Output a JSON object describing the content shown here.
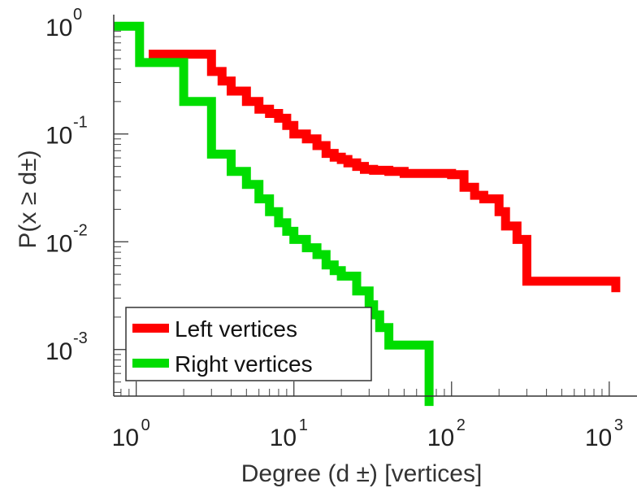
{
  "chart_data": {
    "type": "line",
    "style": "step",
    "x_scale": "log",
    "y_scale": "log",
    "xlabel": "Degree (d  ±) [vertices]",
    "ylabel": "P(x ≥ d±)",
    "xlim": [
      0.72,
      1500
    ],
    "ylim": [
      0.00037,
      1.28
    ],
    "x_ticks": [
      {
        "value": 1,
        "base": "10",
        "exp": "0"
      },
      {
        "value": 10,
        "base": "10",
        "exp": "1"
      },
      {
        "value": 100,
        "base": "10",
        "exp": "2"
      },
      {
        "value": 1000,
        "base": "10",
        "exp": "3"
      }
    ],
    "y_ticks": [
      {
        "value": 1,
        "base": "10",
        "exp": "0"
      },
      {
        "value": 0.1,
        "base": "10",
        "exp": "-1"
      },
      {
        "value": 0.01,
        "base": "10",
        "exp": "-2"
      },
      {
        "value": 0.001,
        "base": "10",
        "exp": "-3"
      }
    ],
    "legend_position": "bottom-left",
    "series": [
      {
        "name": "Left vertices",
        "color": "#ff0000",
        "x": [
          1.2,
          2,
          3,
          3.5,
          4,
          5,
          6,
          7,
          8,
          9,
          10,
          12,
          14,
          16,
          18,
          20,
          22,
          25,
          28,
          32,
          40,
          50,
          70,
          100,
          120,
          140,
          160,
          200,
          220,
          260,
          300,
          600,
          1100
        ],
        "y": [
          0.55,
          0.55,
          0.38,
          0.31,
          0.25,
          0.2,
          0.17,
          0.155,
          0.14,
          0.12,
          0.1,
          0.09,
          0.078,
          0.066,
          0.061,
          0.058,
          0.054,
          0.05,
          0.047,
          0.046,
          0.045,
          0.043,
          0.043,
          0.042,
          0.032,
          0.027,
          0.025,
          0.019,
          0.014,
          0.0105,
          0.0043,
          0.0043,
          0.0034
        ]
      },
      {
        "name": "Right vertices",
        "color": "#00dd00",
        "x": [
          0.72,
          1,
          1.05,
          1.6,
          2,
          2.5,
          3,
          4,
          5,
          6,
          7,
          8,
          9,
          10,
          12,
          14,
          16,
          18,
          20,
          25,
          30,
          32,
          35,
          40,
          50,
          65,
          72
        ],
        "y": [
          1,
          1,
          0.46,
          0.46,
          0.2,
          0.2,
          0.065,
          0.045,
          0.034,
          0.025,
          0.019,
          0.015,
          0.0125,
          0.0105,
          0.0088,
          0.0076,
          0.0061,
          0.0054,
          0.0048,
          0.0035,
          0.0026,
          0.0021,
          0.0016,
          0.0011,
          0.0011,
          0.0011,
          0.0003
        ]
      }
    ]
  }
}
